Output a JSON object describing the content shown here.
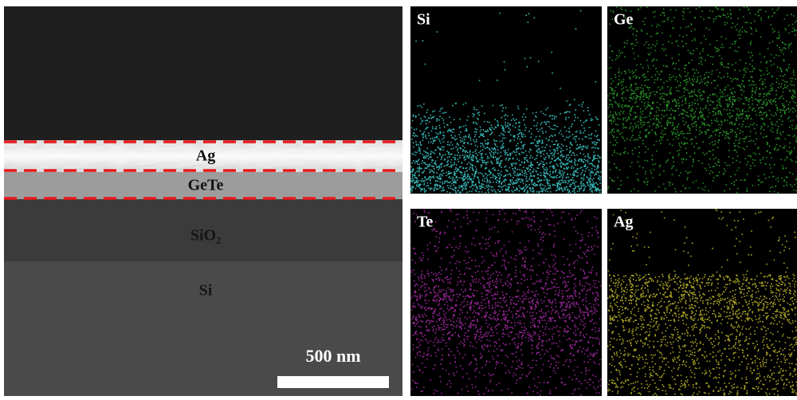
{
  "sem_image": {
    "layer_labels": [
      "Ag",
      "GeTe",
      "SiO₂",
      "Si"
    ],
    "scale_bar": "500 nm"
  },
  "eds_maps": [
    {
      "label": "Si"
    },
    {
      "label": "Ge"
    },
    {
      "label": "Te"
    },
    {
      "label": "Ag"
    }
  ]
}
